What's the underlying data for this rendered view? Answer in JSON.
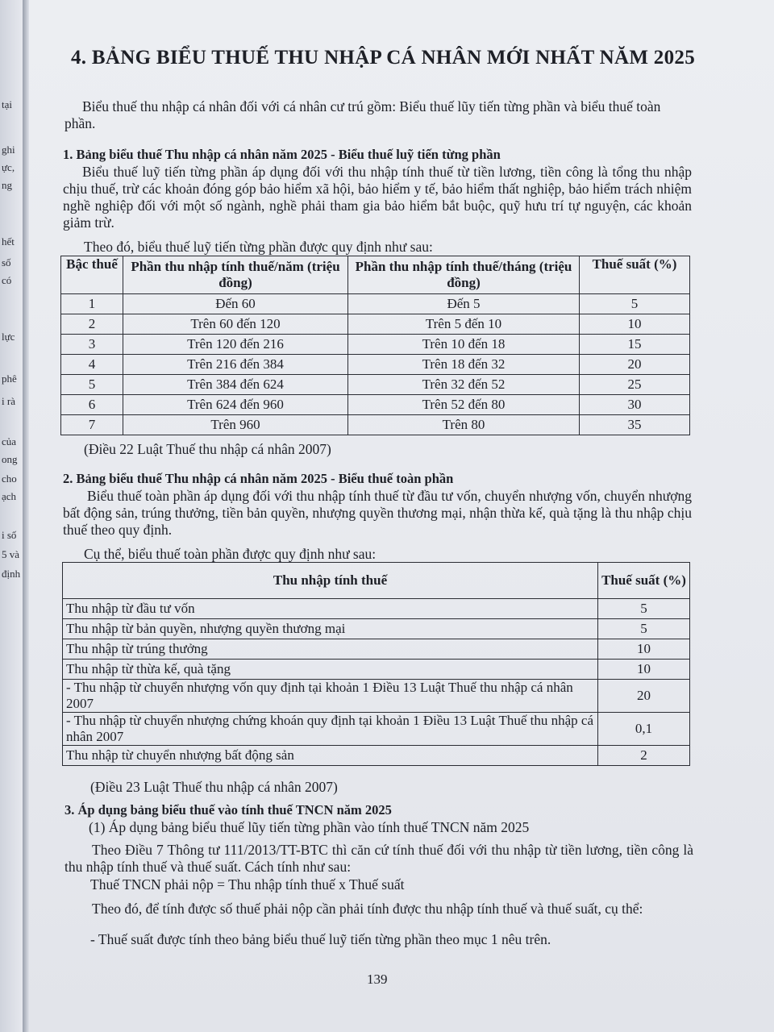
{
  "left_page_fragments": [
    "tại",
    "ghi",
    "ực,",
    "ng",
    "hết",
    "số",
    "có",
    "lực",
    "phê",
    "i rà",
    "của",
    "ong",
    "cho",
    "ạch",
    "i số",
    "5 và",
    "định"
  ],
  "title": "4. BẢNG BIỂU THUẾ THU NHẬP CÁ NHÂN MỚI NHẤT NĂM 2025",
  "intro": "Biểu thuế thu nhập cá nhân đối với cá nhân cư trú gồm: Biểu thuế lũy tiến từng phần và biểu thuế toàn phần.",
  "section1": {
    "heading": "1. Bảng biểu thuế Thu nhập cá nhân năm 2025 - Biểu thuế luỹ tiến từng phần",
    "para": "Biểu thuế luỹ tiến từng phần áp dụng đối với thu nhập tính thuế từ tiền lương, tiền công là tổng thu nhập chịu thuế, trừ các khoản đóng góp bảo hiểm xã hội, bảo hiểm y tế, bảo hiểm thất nghiệp, bảo hiểm trách nhiệm nghề nghiệp đối với một số ngành, nghề phải tham gia bảo hiểm bắt buộc, quỹ hưu trí tự nguyện, các khoản giảm trừ.",
    "lead": "Theo đó, biểu thuế luỹ tiến từng phần được quy định như sau:",
    "table": {
      "headers": [
        "Bậc thuế",
        "Phần thu nhập tính thuế/năm (triệu đồng)",
        "Phần thu nhập tính thuế/tháng (triệu đồng)",
        "Thuế suất (%)"
      ],
      "rows": [
        [
          "1",
          "Đến 60",
          "Đến 5",
          "5"
        ],
        [
          "2",
          "Trên 60 đến 120",
          "Trên 5 đến 10",
          "10"
        ],
        [
          "3",
          "Trên 120 đến 216",
          "Trên 10 đến 18",
          "15"
        ],
        [
          "4",
          "Trên 216 đến 384",
          "Trên 18 đến 32",
          "20"
        ],
        [
          "5",
          "Trên 384 đến 624",
          "Trên 32 đến 52",
          "25"
        ],
        [
          "6",
          "Trên 624 đến 960",
          "Trên 52 đến 80",
          "30"
        ],
        [
          "7",
          "Trên 960",
          "Trên 80",
          "35"
        ]
      ]
    },
    "source": "(Điều 22 Luật Thuế thu nhập cá nhân 2007)"
  },
  "section2": {
    "heading": "2. Bảng biểu thuế Thu nhập cá nhân năm 2025 - Biểu thuế toàn phần",
    "para": "Biểu thuế toàn phần áp dụng đối với thu nhập tính thuế từ đầu tư vốn, chuyển nhượng vốn, chuyển nhượng bất động sản, trúng thưởng, tiền bản quyền, nhượng quyền thương mại, nhận thừa kế, quà tặng là thu nhập chịu thuế theo quy định.",
    "lead": "Cụ thể, biểu thuế toàn phần được quy định như sau:",
    "table": {
      "headers": [
        "Thu nhập tính thuế",
        "Thuế suất (%)"
      ],
      "rows": [
        [
          "Thu nhập từ đầu tư vốn",
          "5"
        ],
        [
          "Thu nhập từ bản quyền, nhượng quyền thương mại",
          "5"
        ],
        [
          "Thu nhập từ trúng thưởng",
          "10"
        ],
        [
          "Thu nhập từ thừa kế, quà tặng",
          "10"
        ],
        [
          "- Thu nhập từ chuyển nhượng vốn quy định tại khoản 1 Điều 13 Luật Thuế thu nhập cá nhân 2007",
          "20"
        ],
        [
          "- Thu nhập từ chuyển nhượng chứng khoán quy định tại khoản 1 Điều 13 Luật Thuế thu nhập cá nhân 2007",
          "0,1"
        ],
        [
          "Thu nhập từ chuyển nhượng bất động sản",
          "2"
        ]
      ]
    },
    "source": "(Điều 23 Luật Thuế thu nhập cá nhân 2007)"
  },
  "section3": {
    "heading": "3. Áp dụng bảng biểu thuế vào tính thuế TNCN năm 2025",
    "p1": "(1) Áp dụng bảng biểu thuế lũy tiến từng phần vào tính thuế TNCN năm 2025",
    "p2": "Theo Điều 7 Thông tư 111/2013/TT-BTC thì căn cứ tính thuế đối với thu nhập từ tiền lương, tiền công là thu nhập tính thuế và thuế suất. Cách tính như sau:",
    "p3": "Thuế TNCN phải nộp = Thu nhập tính thuế x Thuế suất",
    "p4": "Theo đó, để tính được số thuế phải nộp cần phải tính được thu nhập tính thuế và thuế suất, cụ thể:",
    "p5": "- Thuế suất được tính theo bảng biểu thuế luỹ tiến từng phần theo mục 1 nêu trên."
  },
  "page_number": "139"
}
